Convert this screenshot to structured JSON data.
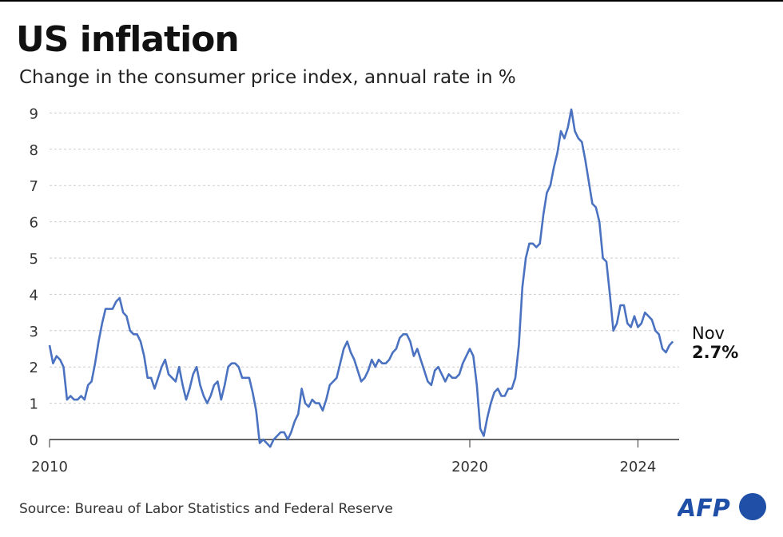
{
  "title": "US inflation",
  "subtitle": "Change in the consumer price index, annual rate in %",
  "source": "Source: Bureau of Labor Statistics and Federal Reserve",
  "logo": "AFP",
  "chart_data": {
    "type": "line",
    "title": "US inflation",
    "subtitle": "Change in the consumer price index, annual rate in %",
    "x_start": "2010-01",
    "x_end": "2024-11",
    "frequency": "monthly",
    "xticks": [
      "2010",
      "2020",
      "2024"
    ],
    "yticks": [
      "0",
      "1",
      "2",
      "3",
      "4",
      "5",
      "6",
      "7",
      "8",
      "9"
    ],
    "ylim": [
      0,
      9
    ],
    "grid": true,
    "line_color": "#4a72c0",
    "annotation": {
      "month": "Nov",
      "value": "2.7%"
    },
    "values": [
      2.6,
      2.1,
      2.3,
      2.2,
      2.0,
      1.1,
      1.2,
      1.1,
      1.1,
      1.2,
      1.1,
      1.5,
      1.6,
      2.1,
      2.7,
      3.2,
      3.6,
      3.6,
      3.6,
      3.8,
      3.9,
      3.5,
      3.4,
      3.0,
      2.9,
      2.9,
      2.7,
      2.3,
      1.7,
      1.7,
      1.4,
      1.7,
      2.0,
      2.2,
      1.8,
      1.7,
      1.6,
      2.0,
      1.5,
      1.1,
      1.4,
      1.8,
      2.0,
      1.5,
      1.2,
      1.0,
      1.2,
      1.5,
      1.6,
      1.1,
      1.5,
      2.0,
      2.1,
      2.1,
      2.0,
      1.7,
      1.7,
      1.7,
      1.3,
      0.8,
      -0.1,
      0.0,
      -0.1,
      -0.2,
      0.0,
      0.1,
      0.2,
      0.2,
      0.0,
      0.2,
      0.5,
      0.7,
      1.4,
      1.0,
      0.9,
      1.1,
      1.0,
      1.0,
      0.8,
      1.1,
      1.5,
      1.6,
      1.7,
      2.1,
      2.5,
      2.7,
      2.4,
      2.2,
      1.9,
      1.6,
      1.7,
      1.9,
      2.2,
      2.0,
      2.2,
      2.1,
      2.1,
      2.2,
      2.4,
      2.5,
      2.8,
      2.9,
      2.9,
      2.7,
      2.3,
      2.5,
      2.2,
      1.9,
      1.6,
      1.5,
      1.9,
      2.0,
      1.8,
      1.6,
      1.8,
      1.7,
      1.7,
      1.8,
      2.1,
      2.3,
      2.5,
      2.3,
      1.5,
      0.3,
      0.1,
      0.6,
      1.0,
      1.3,
      1.4,
      1.2,
      1.2,
      1.4,
      1.4,
      1.7,
      2.6,
      4.2,
      5.0,
      5.4,
      5.4,
      5.3,
      5.4,
      6.2,
      6.8,
      7.0,
      7.5,
      7.9,
      8.5,
      8.3,
      8.6,
      9.1,
      8.5,
      8.3,
      8.2,
      7.7,
      7.1,
      6.5,
      6.4,
      6.0,
      5.0,
      4.9,
      4.0,
      3.0,
      3.2,
      3.7,
      3.7,
      3.2,
      3.1,
      3.4,
      3.1,
      3.2,
      3.5,
      3.4,
      3.3,
      3.0,
      2.9,
      2.5,
      2.4,
      2.6,
      2.7
    ]
  }
}
